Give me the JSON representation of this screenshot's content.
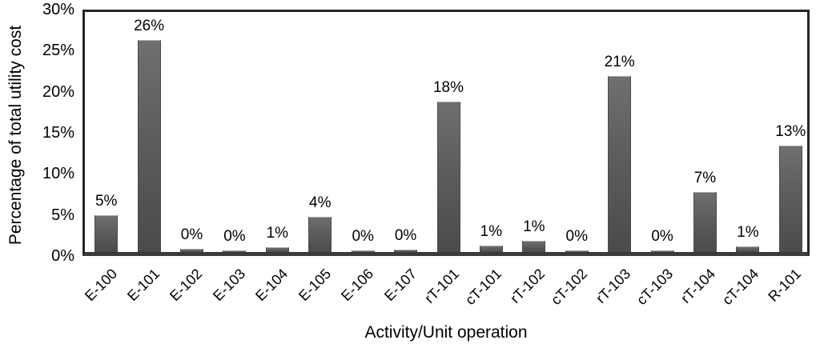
{
  "chart_data": {
    "type": "bar",
    "title": "",
    "xlabel": "Activity/Unit operation",
    "ylabel": "Percentage of total utility cost",
    "categories": [
      "E-100",
      "E-101",
      "E-102",
      "E-103",
      "E-104",
      "E-105",
      "E-106",
      "E-107",
      "rT-101",
      "cT-101",
      "rT-102",
      "cT-102",
      "rT-103",
      "cT-103",
      "rT-104",
      "cT-104",
      "R-101"
    ],
    "values": [
      4.5,
      25.8,
      0.35,
      0.15,
      0.6,
      4.3,
      0.15,
      0.25,
      18.3,
      0.8,
      1.4,
      0.15,
      21.4,
      0.15,
      7.3,
      0.7,
      13.0
    ],
    "data_labels": [
      "5%",
      "26%",
      "0%",
      "0%",
      "1%",
      "4%",
      "0%",
      "0%",
      "18%",
      "1%",
      "1%",
      "0%",
      "21%",
      "0%",
      "7%",
      "1%",
      "13%"
    ],
    "ylim": [
      0,
      30
    ],
    "ytick_step": 5,
    "yticks": [
      "0%",
      "5%",
      "10%",
      "15%",
      "20%",
      "25%",
      "30%"
    ],
    "grid": false,
    "legend": false,
    "bar_color": "#595959",
    "frame_color": "#262626",
    "baseline_color": "#3a3a3a"
  }
}
